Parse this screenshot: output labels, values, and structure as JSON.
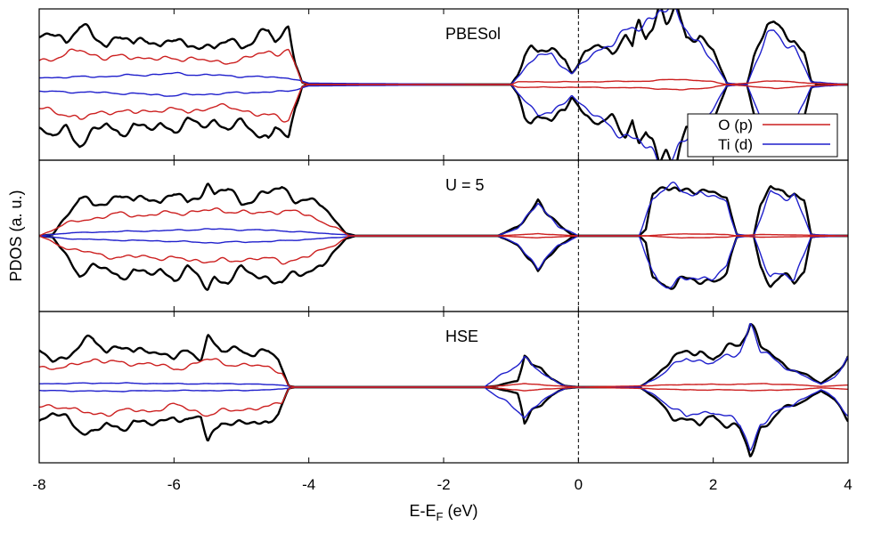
{
  "chart_data": {
    "type": "line",
    "xlabel": "E-E",
    "xlabel_subscript": "F",
    "xlabel_unit": " (eV)",
    "ylabel": "PDOS (a. u.)",
    "xlim": [
      -8,
      4
    ],
    "xticks": [
      "-8",
      "-6",
      "-4",
      "-2",
      "0",
      "2",
      "4"
    ],
    "fermi_line_x": 0,
    "colors": {
      "total": "#000000",
      "O_p": "#cc1f1f",
      "Ti_d": "#1f1fcc",
      "fermi": "#000000"
    },
    "legend": {
      "placement": "top-panel right",
      "entries": [
        {
          "label": "O (p)",
          "color": "#cc1f1f"
        },
        {
          "label": "Ti (d)",
          "color": "#1f1fcc"
        }
      ]
    },
    "panels": [
      {
        "label": "PBESol",
        "spin_mirrored": true,
        "total_envelope": [
          [
            -8.0,
            0.64
          ],
          [
            -7.8,
            0.78
          ],
          [
            -7.6,
            0.66
          ],
          [
            -7.4,
            0.84
          ],
          [
            -7.2,
            0.7
          ],
          [
            -7.0,
            0.6
          ],
          [
            -6.8,
            0.74
          ],
          [
            -6.6,
            0.56
          ],
          [
            -6.4,
            0.7
          ],
          [
            -6.2,
            0.58
          ],
          [
            -6.0,
            0.66
          ],
          [
            -5.8,
            0.54
          ],
          [
            -5.6,
            0.62
          ],
          [
            -5.4,
            0.52
          ],
          [
            -5.2,
            0.64
          ],
          [
            -5.0,
            0.58
          ],
          [
            -4.8,
            0.68
          ],
          [
            -4.6,
            0.78
          ],
          [
            -4.5,
            0.6
          ],
          [
            -4.3,
            0.86
          ],
          [
            -4.2,
            0.35
          ],
          [
            -4.1,
            0.03
          ],
          [
            -4.0,
            0.0
          ],
          [
            -1.0,
            0.0
          ],
          [
            -0.9,
            0.15
          ],
          [
            -0.8,
            0.45
          ],
          [
            -0.7,
            0.55
          ],
          [
            -0.6,
            0.45
          ],
          [
            -0.4,
            0.52
          ],
          [
            -0.2,
            0.4
          ],
          [
            -0.1,
            0.18
          ],
          [
            0.0,
            0.28
          ],
          [
            0.1,
            0.45
          ],
          [
            0.3,
            0.6
          ],
          [
            0.5,
            0.48
          ],
          [
            0.7,
            0.72
          ],
          [
            0.8,
            0.5
          ],
          [
            0.9,
            0.95
          ],
          [
            1.0,
            0.7
          ],
          [
            1.1,
            0.85
          ],
          [
            1.2,
            1.2
          ],
          [
            1.3,
            0.95
          ],
          [
            1.45,
            1.08
          ],
          [
            1.6,
            0.65
          ],
          [
            1.8,
            0.75
          ],
          [
            2.0,
            0.5
          ],
          [
            2.2,
            0.02
          ],
          [
            2.3,
            0.0
          ],
          [
            2.5,
            0.0
          ],
          [
            2.6,
            0.4
          ],
          [
            2.8,
            0.84
          ],
          [
            2.9,
            0.9
          ],
          [
            3.0,
            0.78
          ],
          [
            3.2,
            0.7
          ],
          [
            3.35,
            0.45
          ],
          [
            3.45,
            0.05
          ],
          [
            3.55,
            0.0
          ],
          [
            4.0,
            0.0
          ]
        ],
        "ti_d_envelope": [
          [
            -8.0,
            0.1
          ],
          [
            -7.0,
            0.12
          ],
          [
            -6.0,
            0.16
          ],
          [
            -5.0,
            0.12
          ],
          [
            -4.3,
            0.1
          ],
          [
            -4.0,
            0.02
          ],
          [
            -1.0,
            0.0
          ],
          [
            -0.9,
            0.12
          ],
          [
            -0.6,
            0.42
          ],
          [
            -0.4,
            0.45
          ],
          [
            -0.1,
            0.15
          ],
          [
            0.0,
            0.25
          ],
          [
            0.3,
            0.52
          ],
          [
            0.9,
            0.85
          ],
          [
            1.2,
            1.12
          ],
          [
            1.45,
            1.0
          ],
          [
            1.8,
            0.62
          ],
          [
            2.2,
            0.02
          ],
          [
            2.5,
            0.0
          ],
          [
            2.8,
            0.7
          ],
          [
            2.9,
            0.78
          ],
          [
            3.2,
            0.55
          ],
          [
            3.45,
            0.04
          ],
          [
            4.0,
            0.0
          ]
        ],
        "o_p_envelope": [
          [
            -8.0,
            0.36
          ],
          [
            -7.6,
            0.42
          ],
          [
            -7.4,
            0.52
          ],
          [
            -7.0,
            0.38
          ],
          [
            -6.6,
            0.42
          ],
          [
            -6.2,
            0.36
          ],
          [
            -5.8,
            0.4
          ],
          [
            -5.4,
            0.32
          ],
          [
            -5.0,
            0.36
          ],
          [
            -4.6,
            0.48
          ],
          [
            -4.3,
            0.5
          ],
          [
            -4.1,
            0.03
          ],
          [
            -4.0,
            0.0
          ],
          [
            -1.0,
            0.0
          ],
          [
            -0.9,
            0.04
          ],
          [
            0.0,
            0.04
          ],
          [
            1.0,
            0.05
          ],
          [
            1.5,
            0.08
          ],
          [
            2.0,
            0.04
          ],
          [
            2.2,
            0.0
          ],
          [
            2.5,
            0.02
          ],
          [
            2.9,
            0.06
          ],
          [
            3.4,
            0.02
          ],
          [
            4.0,
            0.0
          ]
        ]
      },
      {
        "label": "U = 5",
        "spin_mirrored": true,
        "total_envelope": [
          [
            -8.0,
            0.0
          ],
          [
            -7.8,
            0.02
          ],
          [
            -7.6,
            0.3
          ],
          [
            -7.4,
            0.55
          ],
          [
            -7.2,
            0.45
          ],
          [
            -7.0,
            0.5
          ],
          [
            -6.8,
            0.62
          ],
          [
            -6.6,
            0.48
          ],
          [
            -6.4,
            0.6
          ],
          [
            -6.2,
            0.5
          ],
          [
            -6.0,
            0.62
          ],
          [
            -5.8,
            0.48
          ],
          [
            -5.6,
            0.66
          ],
          [
            -5.5,
            0.75
          ],
          [
            -5.4,
            0.6
          ],
          [
            -5.2,
            0.68
          ],
          [
            -5.0,
            0.5
          ],
          [
            -4.8,
            0.55
          ],
          [
            -4.6,
            0.62
          ],
          [
            -4.4,
            0.72
          ],
          [
            -4.2,
            0.55
          ],
          [
            -4.0,
            0.5
          ],
          [
            -3.8,
            0.45
          ],
          [
            -3.6,
            0.22
          ],
          [
            -3.45,
            0.04
          ],
          [
            -3.3,
            0.0
          ],
          [
            -1.2,
            0.0
          ],
          [
            -1.1,
            0.04
          ],
          [
            -0.9,
            0.15
          ],
          [
            -0.7,
            0.35
          ],
          [
            -0.6,
            0.5
          ],
          [
            -0.5,
            0.35
          ],
          [
            -0.3,
            0.18
          ],
          [
            -0.1,
            0.02
          ],
          [
            0.0,
            0.0
          ],
          [
            0.9,
            0.0
          ],
          [
            1.0,
            0.1
          ],
          [
            1.1,
            0.65
          ],
          [
            1.3,
            0.75
          ],
          [
            1.5,
            0.6
          ],
          [
            1.7,
            0.7
          ],
          [
            1.9,
            0.68
          ],
          [
            2.1,
            0.6
          ],
          [
            2.2,
            0.5
          ],
          [
            2.35,
            0.02
          ],
          [
            2.45,
            0.0
          ],
          [
            2.6,
            0.0
          ],
          [
            2.7,
            0.45
          ],
          [
            2.85,
            0.7
          ],
          [
            3.0,
            0.62
          ],
          [
            3.2,
            0.68
          ],
          [
            3.35,
            0.5
          ],
          [
            3.45,
            0.02
          ],
          [
            3.6,
            0.0
          ],
          [
            4.0,
            0.0
          ]
        ],
        "ti_d_envelope": [
          [
            -8.0,
            0.0
          ],
          [
            -7.6,
            0.04
          ],
          [
            -7.0,
            0.06
          ],
          [
            -6.0,
            0.08
          ],
          [
            -5.5,
            0.1
          ],
          [
            -4.5,
            0.08
          ],
          [
            -3.5,
            0.02
          ],
          [
            -3.3,
            0.0
          ],
          [
            -1.2,
            0.0
          ],
          [
            -0.9,
            0.12
          ],
          [
            -0.6,
            0.46
          ],
          [
            -0.3,
            0.15
          ],
          [
            0.0,
            0.0
          ],
          [
            0.9,
            0.0
          ],
          [
            1.1,
            0.58
          ],
          [
            1.3,
            0.7
          ],
          [
            1.9,
            0.62
          ],
          [
            2.2,
            0.46
          ],
          [
            2.35,
            0.02
          ],
          [
            2.6,
            0.0
          ],
          [
            2.85,
            0.62
          ],
          [
            3.2,
            0.6
          ],
          [
            3.45,
            0.02
          ],
          [
            4.0,
            0.0
          ]
        ],
        "o_p_envelope": [
          [
            -8.0,
            0.0
          ],
          [
            -7.6,
            0.18
          ],
          [
            -7.2,
            0.26
          ],
          [
            -6.8,
            0.32
          ],
          [
            -6.4,
            0.3
          ],
          [
            -6.0,
            0.34
          ],
          [
            -5.6,
            0.36
          ],
          [
            -5.2,
            0.38
          ],
          [
            -4.8,
            0.32
          ],
          [
            -4.4,
            0.38
          ],
          [
            -4.0,
            0.3
          ],
          [
            -3.6,
            0.12
          ],
          [
            -3.4,
            0.0
          ],
          [
            -1.2,
            0.0
          ],
          [
            -0.6,
            0.03
          ],
          [
            0.0,
            0.0
          ],
          [
            1.0,
            0.0
          ],
          [
            1.5,
            0.03
          ],
          [
            2.2,
            0.02
          ],
          [
            2.35,
            0.0
          ],
          [
            2.7,
            0.02
          ],
          [
            3.4,
            0.01
          ],
          [
            4.0,
            0.0
          ]
        ]
      },
      {
        "label": "HSE",
        "spin_mirrored": true,
        "total_envelope": [
          [
            -8.0,
            0.5
          ],
          [
            -7.8,
            0.4
          ],
          [
            -7.6,
            0.45
          ],
          [
            -7.4,
            0.6
          ],
          [
            -7.2,
            0.7
          ],
          [
            -7.0,
            0.55
          ],
          [
            -6.8,
            0.62
          ],
          [
            -6.6,
            0.48
          ],
          [
            -6.4,
            0.58
          ],
          [
            -6.2,
            0.5
          ],
          [
            -6.0,
            0.42
          ],
          [
            -5.8,
            0.52
          ],
          [
            -5.6,
            0.45
          ],
          [
            -5.5,
            0.75
          ],
          [
            -5.3,
            0.5
          ],
          [
            -5.0,
            0.58
          ],
          [
            -4.8,
            0.48
          ],
          [
            -4.6,
            0.52
          ],
          [
            -4.45,
            0.4
          ],
          [
            -4.3,
            0.02
          ],
          [
            -4.2,
            0.0
          ],
          [
            -1.4,
            0.0
          ],
          [
            -1.2,
            0.02
          ],
          [
            -0.9,
            0.1
          ],
          [
            -0.8,
            0.5
          ],
          [
            -0.7,
            0.32
          ],
          [
            -0.55,
            0.26
          ],
          [
            -0.4,
            0.12
          ],
          [
            -0.2,
            0.02
          ],
          [
            0.0,
            0.0
          ],
          [
            0.9,
            0.0
          ],
          [
            1.0,
            0.06
          ],
          [
            1.2,
            0.22
          ],
          [
            1.4,
            0.42
          ],
          [
            1.6,
            0.5
          ],
          [
            1.8,
            0.55
          ],
          [
            2.0,
            0.4
          ],
          [
            2.2,
            0.55
          ],
          [
            2.4,
            0.65
          ],
          [
            2.55,
            1.0
          ],
          [
            2.7,
            0.6
          ],
          [
            3.0,
            0.35
          ],
          [
            3.3,
            0.22
          ],
          [
            3.6,
            0.05
          ],
          [
            3.8,
            0.2
          ],
          [
            4.0,
            0.45
          ]
        ],
        "ti_d_envelope": [
          [
            -8.0,
            0.05
          ],
          [
            -7.0,
            0.06
          ],
          [
            -6.0,
            0.05
          ],
          [
            -5.0,
            0.05
          ],
          [
            -4.4,
            0.03
          ],
          [
            -4.2,
            0.0
          ],
          [
            -1.4,
            0.0
          ],
          [
            -0.8,
            0.42
          ],
          [
            -0.55,
            0.2
          ],
          [
            -0.2,
            0.02
          ],
          [
            0.0,
            0.0
          ],
          [
            0.9,
            0.0
          ],
          [
            1.2,
            0.16
          ],
          [
            1.6,
            0.44
          ],
          [
            2.0,
            0.34
          ],
          [
            2.4,
            0.55
          ],
          [
            2.55,
            0.92
          ],
          [
            2.7,
            0.52
          ],
          [
            3.3,
            0.18
          ],
          [
            3.6,
            0.04
          ],
          [
            3.8,
            0.16
          ],
          [
            4.0,
            0.4
          ]
        ],
        "o_p_envelope": [
          [
            -8.0,
            0.3
          ],
          [
            -7.6,
            0.28
          ],
          [
            -7.2,
            0.42
          ],
          [
            -6.8,
            0.34
          ],
          [
            -6.4,
            0.36
          ],
          [
            -6.0,
            0.26
          ],
          [
            -5.5,
            0.4
          ],
          [
            -5.0,
            0.32
          ],
          [
            -4.6,
            0.3
          ],
          [
            -4.4,
            0.22
          ],
          [
            -4.3,
            0.02
          ],
          [
            -4.2,
            0.0
          ],
          [
            -1.4,
            0.0
          ],
          [
            -0.8,
            0.05
          ],
          [
            0.0,
            0.0
          ],
          [
            1.0,
            0.02
          ],
          [
            1.6,
            0.04
          ],
          [
            2.2,
            0.04
          ],
          [
            2.8,
            0.05
          ],
          [
            3.3,
            0.03
          ],
          [
            3.6,
            0.01
          ],
          [
            4.0,
            0.03
          ]
        ]
      }
    ]
  }
}
